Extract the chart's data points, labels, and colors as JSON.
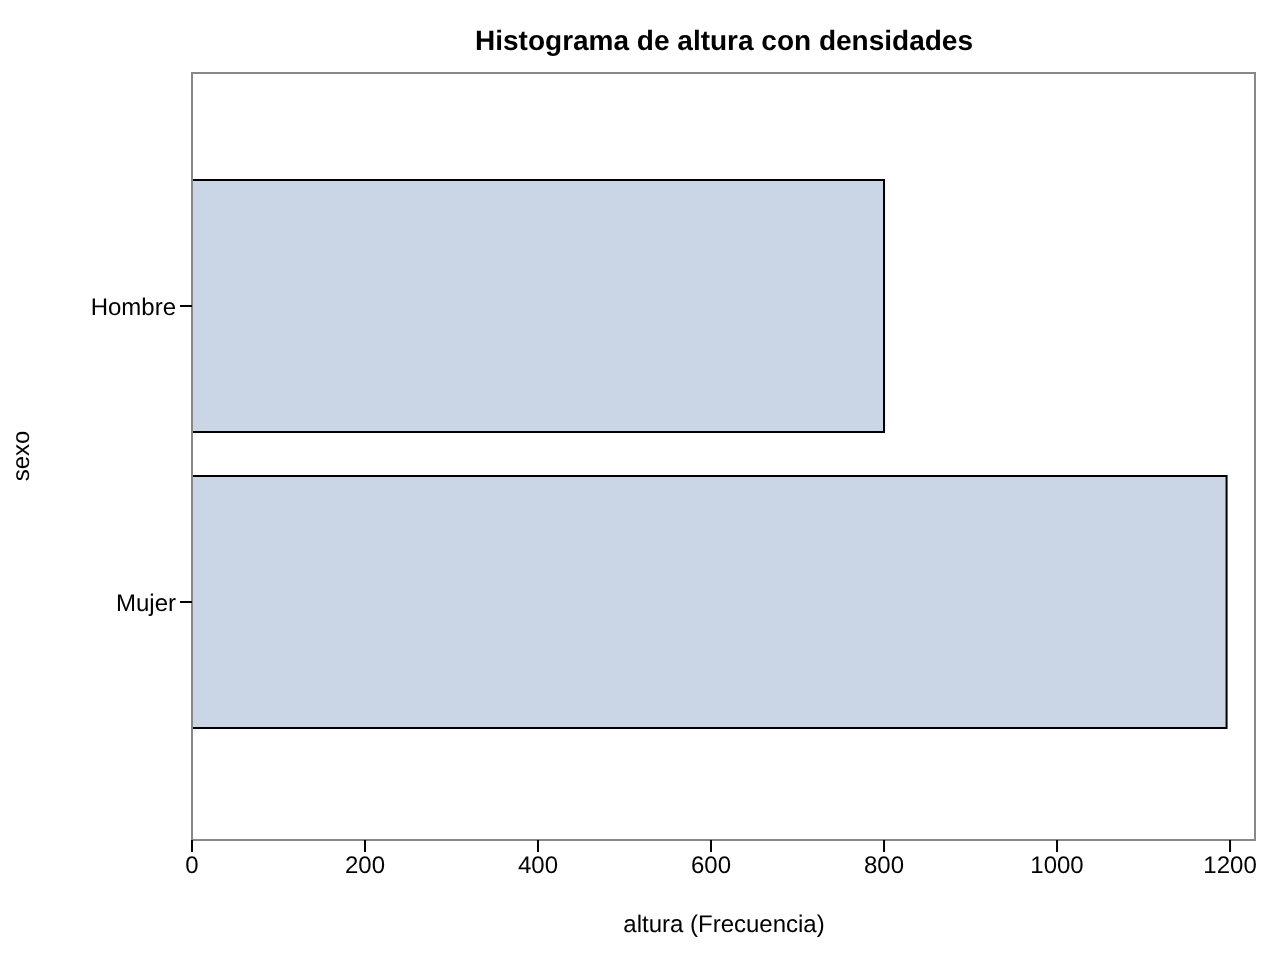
{
  "chart_data": {
    "type": "bar",
    "orientation": "horizontal",
    "title": "Histograma de altura con densidades",
    "xlabel": "altura (Frecuencia)",
    "ylabel": "sexo",
    "categories": [
      "Hombre",
      "Mujer"
    ],
    "values": [
      800,
      1196
    ],
    "color": "#cad5e5",
    "xlim": [
      0,
      1230
    ],
    "xticks": [
      0,
      200,
      400,
      600,
      800,
      1000,
      1200
    ],
    "grid": false
  }
}
